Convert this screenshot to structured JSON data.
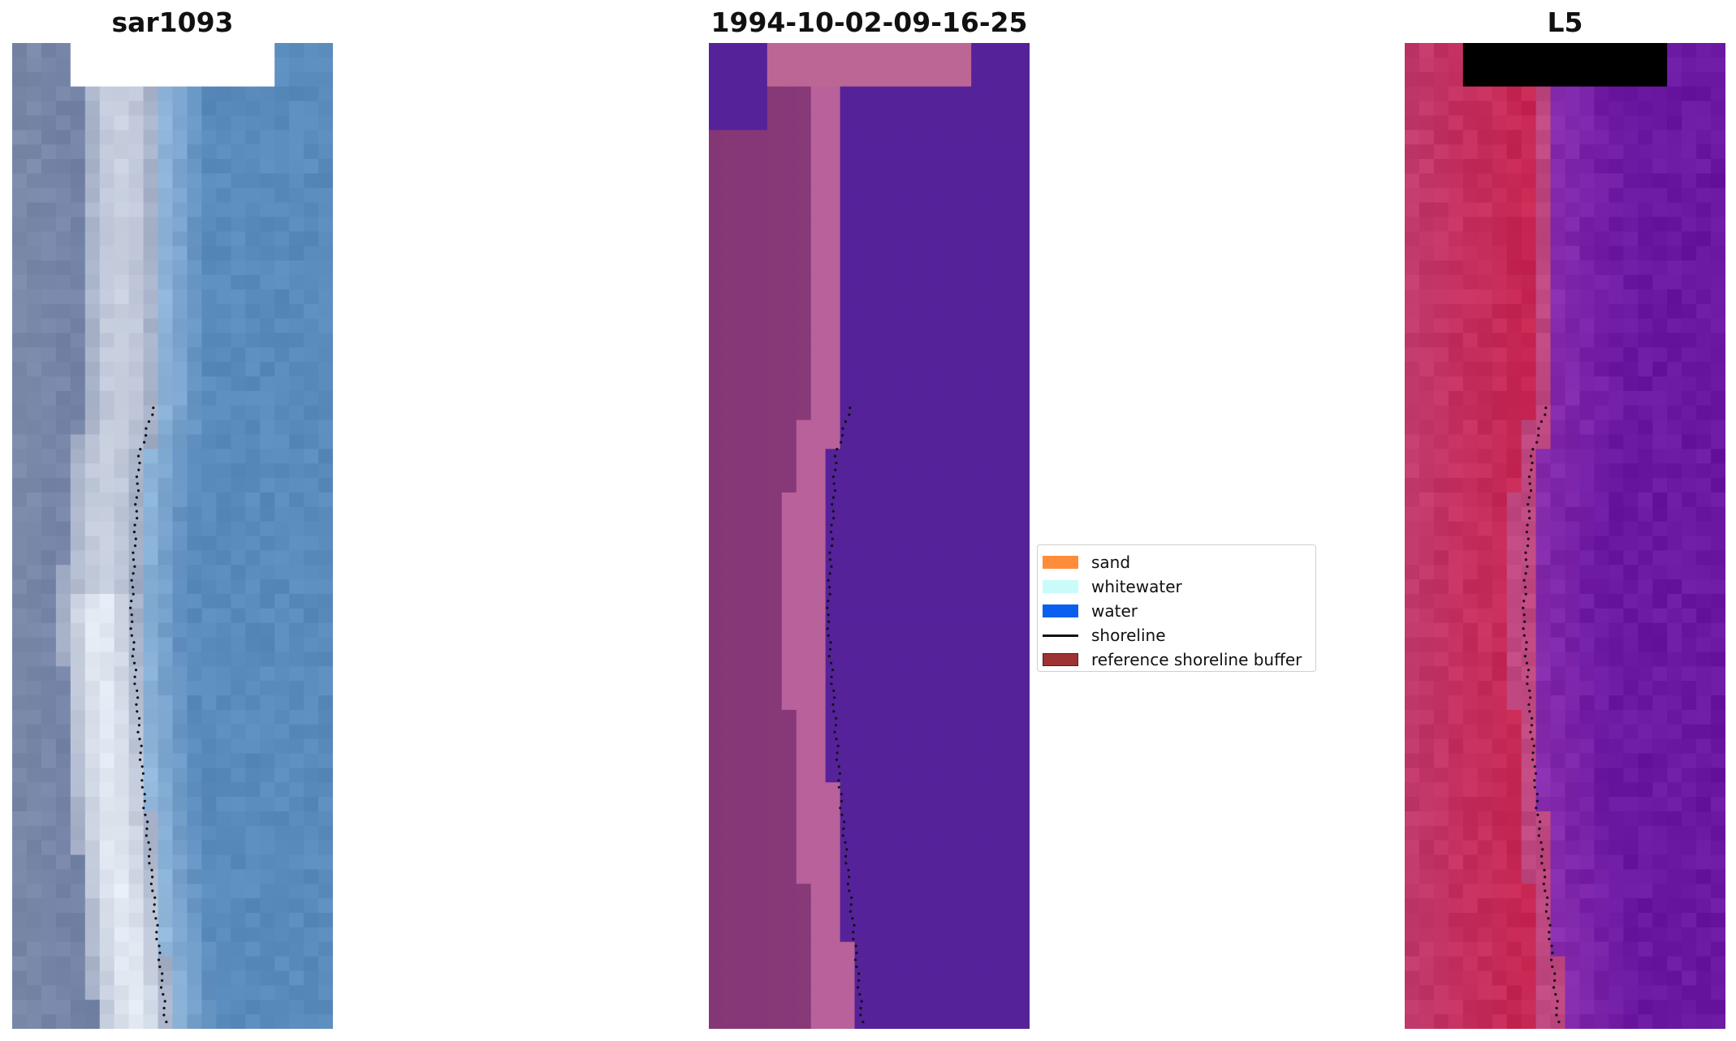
{
  "titles": {
    "left": "sar1093",
    "middle": "1994-10-02-09-16-25",
    "right": "L5"
  },
  "panels": {
    "left": "rgb-image",
    "middle": "classified-image",
    "right": "ndwi-image"
  },
  "legend": {
    "items": [
      {
        "label": "sand",
        "kind": "patch",
        "color": "#ff8c3a"
      },
      {
        "label": "whitewater",
        "kind": "patch",
        "color": "#c9fbfb"
      },
      {
        "label": "water",
        "kind": "patch",
        "color": "#0b5ff0"
      },
      {
        "label": "shoreline",
        "kind": "line",
        "color": "#111111"
      },
      {
        "label": "reference shoreline buffer",
        "kind": "patch",
        "color": "#9e3333"
      }
    ]
  },
  "colors": {
    "rgb_water": "#5a8bbd",
    "rgb_sand": "#7b88a8",
    "rgb_surf": "#e8eef6",
    "class_water": "#55229a",
    "class_land": "#843676",
    "class_shore": "#b8619a",
    "class_nodata": "#bc6696",
    "ndwi_land": "#c62853",
    "ndwi_water": "#6a17a2",
    "ndwi_nodata": "#c06595",
    "shoreline_dots": "#111111"
  }
}
